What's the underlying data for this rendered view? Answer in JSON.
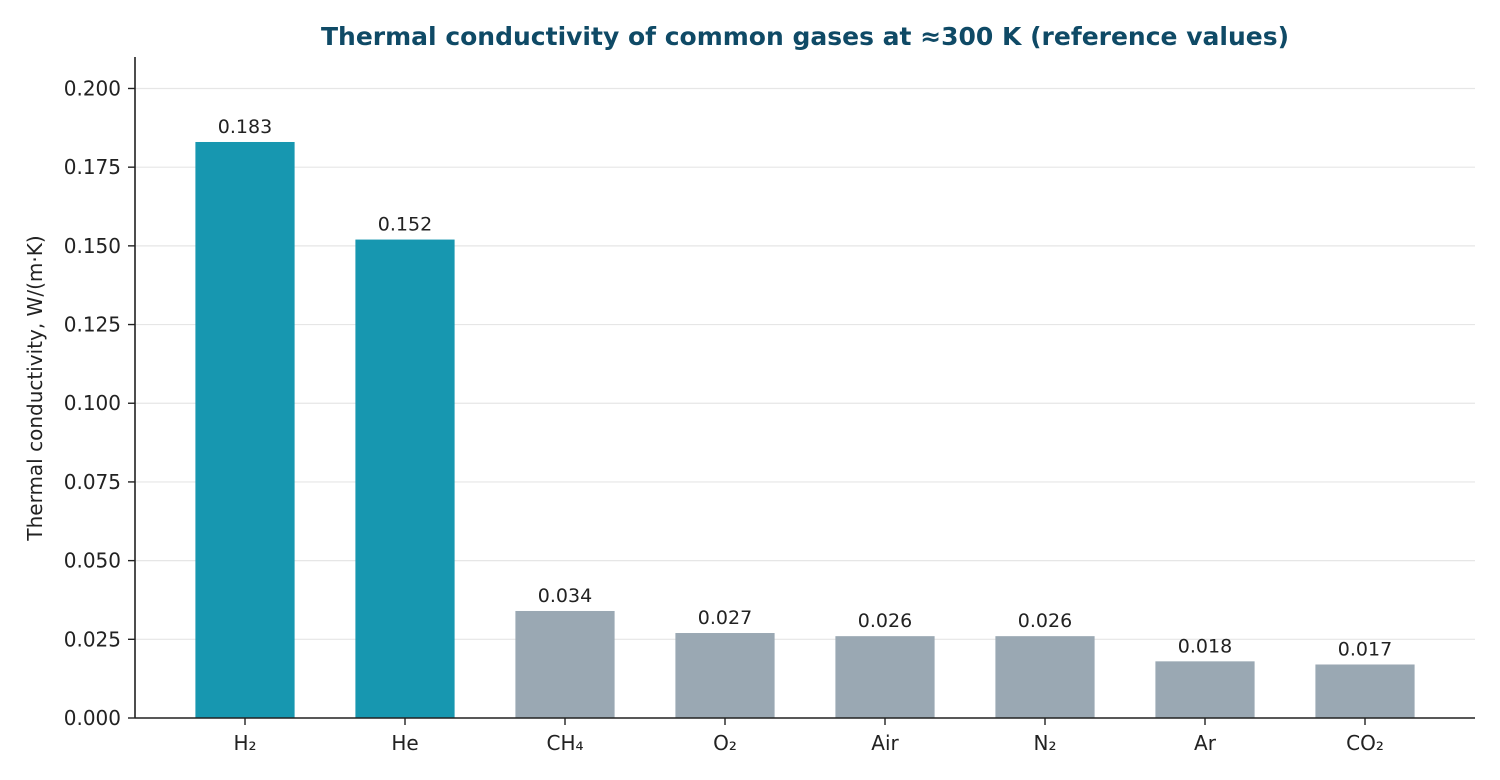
{
  "chart_data": {
    "type": "bar",
    "title": "Thermal conductivity of common gases at ≈300 K (reference values)",
    "xlabel": "",
    "ylabel": "Thermal conductivity, W/(m·K)",
    "categories": [
      "H₂",
      "He",
      "CH₄",
      "O₂",
      "Air",
      "N₂",
      "Ar",
      "CO₂"
    ],
    "values": [
      0.183,
      0.152,
      0.034,
      0.027,
      0.026,
      0.026,
      0.018,
      0.017
    ],
    "value_labels": [
      "0.183",
      "0.152",
      "0.034",
      "0.027",
      "0.026",
      "0.026",
      "0.018",
      "0.017"
    ],
    "ylim": [
      0,
      0.21
    ],
    "yticks": [
      0.0,
      0.025,
      0.05,
      0.075,
      0.1,
      0.125,
      0.15,
      0.175,
      0.2
    ],
    "ytick_labels": [
      "0.000",
      "0.025",
      "0.050",
      "0.075",
      "0.100",
      "0.125",
      "0.150",
      "0.175",
      "0.200"
    ],
    "grid": "horizontal",
    "colors": {
      "highlight": "#1797b0",
      "default": "#9aa8b3",
      "title": "#0f4a66",
      "grid": "#e6e6e6",
      "axis": "#222222"
    },
    "highlighted": [
      "H₂",
      "He"
    ]
  }
}
